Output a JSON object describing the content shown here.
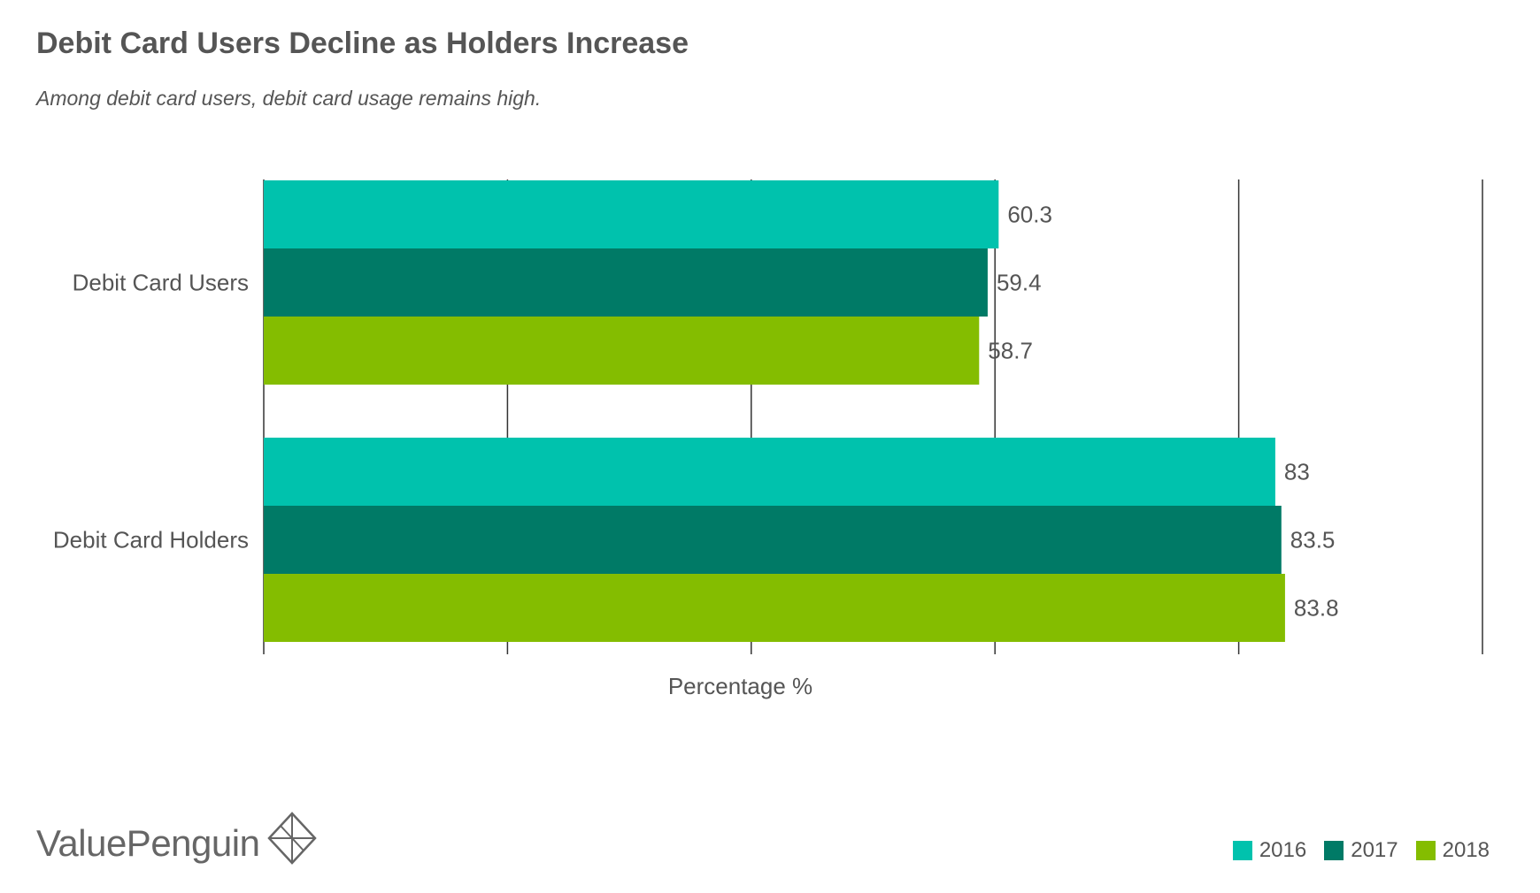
{
  "header": {
    "title": "Debit Card Users Decline as Holders Increase",
    "subtitle": "Among debit card users, debit card usage remains high."
  },
  "brand": {
    "name": "ValuePenguin",
    "icon": "diamond-logo-icon"
  },
  "colors": {
    "s2016": "#00c2ad",
    "s2017": "#007a66",
    "s2018": "#84bd00",
    "text": "#555555",
    "grid": "#333333"
  },
  "chart_data": {
    "type": "bar",
    "orientation": "horizontal",
    "title": "Debit Card Users Decline as Holders Increase",
    "subtitle": "Among debit card users, debit card usage remains high.",
    "categories": [
      "Debit Card Users",
      "Debit Card Holders"
    ],
    "series": [
      {
        "name": "2016",
        "values": [
          60.3,
          83
        ],
        "labels": [
          "60.3",
          "83"
        ]
      },
      {
        "name": "2017",
        "values": [
          59.4,
          83.5
        ],
        "labels": [
          "59.4",
          "83.5"
        ]
      },
      {
        "name": "2018",
        "values": [
          58.7,
          83.8
        ],
        "labels": [
          "58.7",
          "83.8"
        ]
      }
    ],
    "xlabel": "Percentage %",
    "ylabel": "",
    "xlim": [
      0,
      100
    ],
    "grid": true,
    "tick_labels_shown": false,
    "legend_position": "bottom-right"
  }
}
